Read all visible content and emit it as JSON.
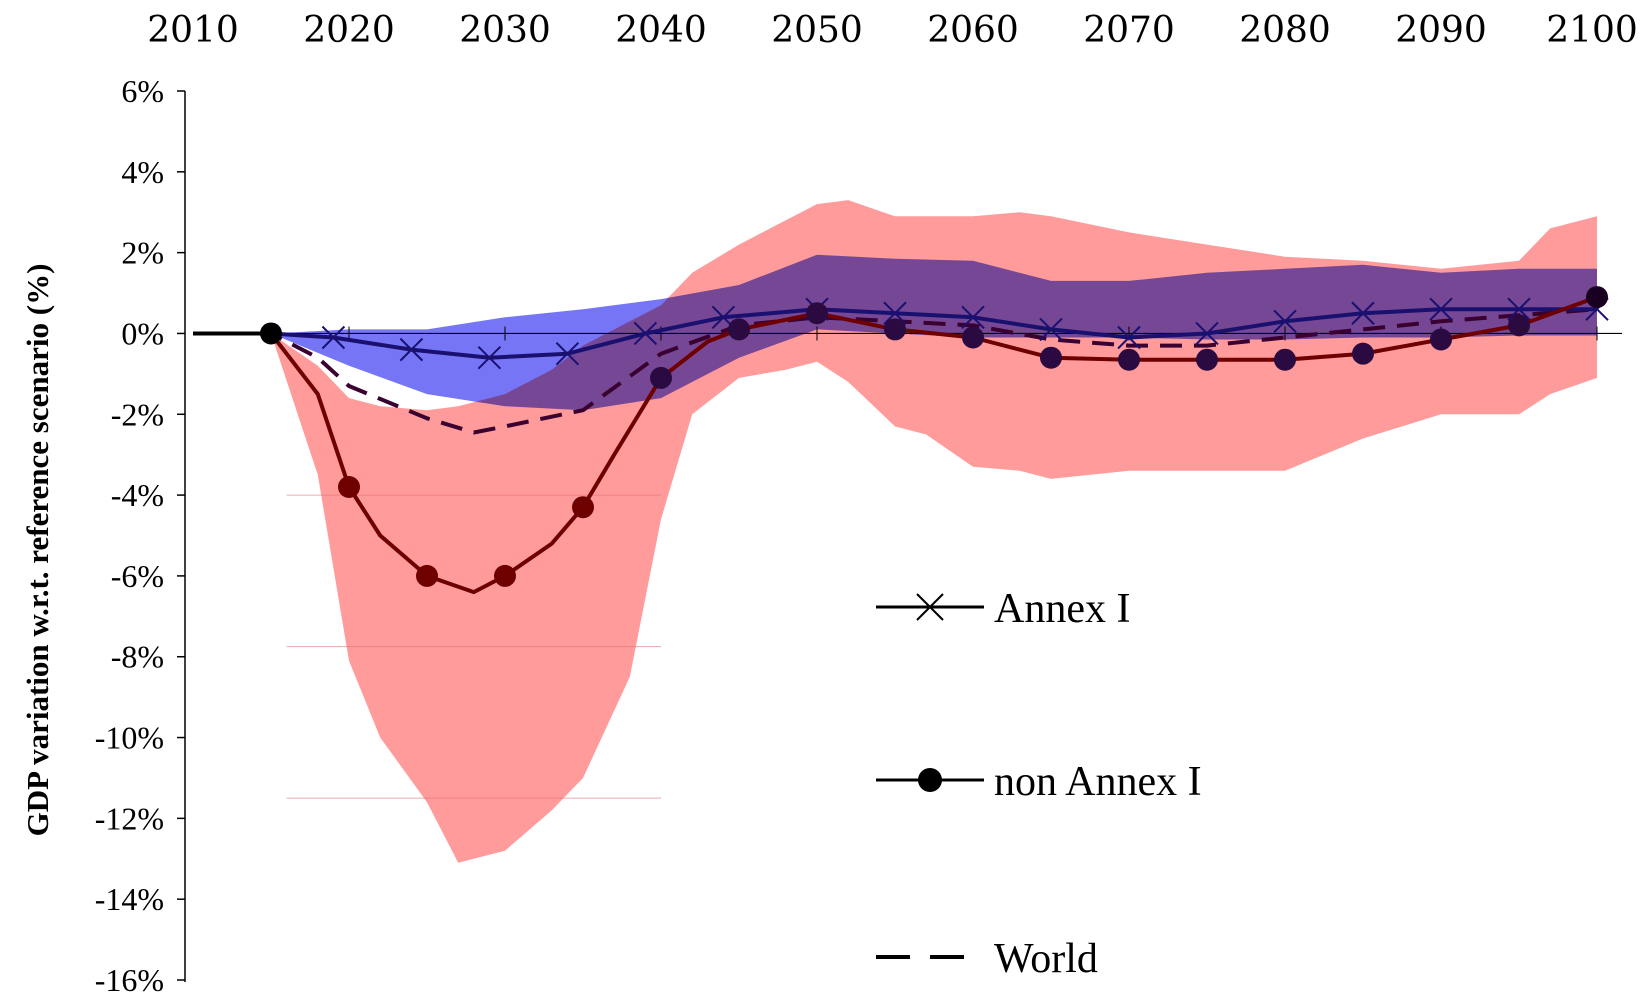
{
  "chart_data": {
    "type": "line",
    "title": "",
    "xlabel": "",
    "ylabel": "GDP variation w.r.t. reference scenario (%)",
    "x_ticks": [
      "2010",
      "2020",
      "2030",
      "2040",
      "2050",
      "2060",
      "2070",
      "2080",
      "2090",
      "2100"
    ],
    "y_ticks": [
      "6%",
      "4%",
      "2%",
      "0%",
      "-2%",
      "-4%",
      "-6%",
      "-8%",
      "-10%",
      "-12%",
      "-14%",
      "-16%"
    ],
    "xlim": [
      2010,
      2100
    ],
    "ylim": [
      -16,
      6
    ],
    "x_axis_position": "top",
    "legend_position": "center-right",
    "colors": {
      "annex_line": "#1a1070",
      "annex_band": "#6e6ef5",
      "non_annex_line": "#6e0000",
      "non_annex_band": "#ff9090",
      "overlap_band": "#7b42c8",
      "world_line": "#3a0030"
    },
    "series": [
      {
        "name": "Annex I",
        "marker": "x",
        "x": [
          2010,
          2015,
          2019,
          2024,
          2029,
          2034,
          2039,
          2044,
          2050,
          2055,
          2060,
          2065,
          2070,
          2075,
          2080,
          2085,
          2090,
          2095,
          2100
        ],
        "values": [
          0,
          0,
          -0.1,
          -0.4,
          -0.6,
          -0.5,
          0.0,
          0.4,
          0.6,
          0.5,
          0.4,
          0.1,
          -0.1,
          0.0,
          0.3,
          0.5,
          0.6,
          0.6,
          0.6
        ]
      },
      {
        "name": "non Annex I",
        "marker": "circle",
        "x": [
          2010,
          2015,
          2018,
          2020,
          2022,
          2025,
          2028,
          2030,
          2033,
          2035,
          2037,
          2040,
          2043,
          2045,
          2050,
          2055,
          2060,
          2065,
          2070,
          2075,
          2080,
          2085,
          2090,
          2095,
          2100
        ],
        "values": [
          0,
          0,
          -1.5,
          -3.8,
          -5.0,
          -6.0,
          -6.4,
          -6.0,
          -5.2,
          -4.3,
          -3.0,
          -1.1,
          -0.2,
          0.1,
          0.5,
          0.1,
          -0.1,
          -0.6,
          -0.65,
          -0.65,
          -0.65,
          -0.5,
          -0.15,
          0.2,
          0.9
        ]
      },
      {
        "name": "World",
        "marker": "none",
        "dashed": true,
        "x": [
          2010,
          2015,
          2018,
          2020,
          2025,
          2028,
          2030,
          2035,
          2040,
          2045,
          2050,
          2055,
          2060,
          2065,
          2070,
          2075,
          2080,
          2085,
          2090,
          2095,
          2100
        ],
        "values": [
          0,
          0,
          -0.6,
          -1.3,
          -2.1,
          -2.45,
          -2.3,
          -1.9,
          -0.5,
          0.2,
          0.4,
          0.3,
          0.2,
          -0.15,
          -0.3,
          -0.3,
          -0.1,
          0.1,
          0.3,
          0.45,
          0.6
        ]
      }
    ],
    "bands": [
      {
        "name": "Annex I range",
        "x": [
          2015,
          2020,
          2025,
          2030,
          2035,
          2040,
          2045,
          2050,
          2055,
          2060,
          2065,
          2070,
          2075,
          2080,
          2085,
          2090,
          2095,
          2100
        ],
        "upper": [
          0,
          0.1,
          0.1,
          0.4,
          0.6,
          0.85,
          1.2,
          1.95,
          1.85,
          1.8,
          1.3,
          1.3,
          1.5,
          1.6,
          1.7,
          1.5,
          1.6,
          1.6
        ],
        "lower": [
          0,
          -0.8,
          -1.5,
          -1.8,
          -1.9,
          -1.6,
          -0.6,
          0.1,
          0.0,
          -0.1,
          -0.1,
          -0.1,
          -0.15,
          -0.15,
          -0.1,
          -0.1,
          -0.05,
          -0.05
        ]
      },
      {
        "name": "non Annex I range",
        "x": [
          2015,
          2018,
          2020,
          2022,
          2025,
          2027,
          2030,
          2033,
          2035,
          2038,
          2040,
          2042,
          2045,
          2048,
          2050,
          2052,
          2055,
          2057,
          2060,
          2063,
          2065,
          2070,
          2075,
          2080,
          2085,
          2090,
          2095,
          2097,
          2100
        ],
        "upper": [
          0,
          -0.8,
          -1.6,
          -1.8,
          -1.9,
          -1.8,
          -1.5,
          -0.9,
          -0.3,
          0.3,
          0.7,
          1.5,
          2.2,
          2.8,
          3.2,
          3.3,
          2.9,
          2.9,
          2.9,
          3.0,
          2.9,
          2.5,
          2.2,
          1.9,
          1.8,
          1.6,
          1.8,
          2.6,
          2.9
        ],
        "lower": [
          0,
          -3.5,
          -8.1,
          -10.0,
          -11.6,
          -13.1,
          -12.8,
          -11.8,
          -11.0,
          -8.5,
          -4.6,
          -2.0,
          -1.1,
          -0.9,
          -0.7,
          -1.2,
          -2.3,
          -2.5,
          -3.3,
          -3.4,
          -3.6,
          -3.4,
          -3.4,
          -3.4,
          -2.6,
          -2.0,
          -2.0,
          -1.5,
          -1.1
        ]
      }
    ],
    "legend": [
      {
        "label": "Annex I",
        "marker": "x"
      },
      {
        "label": "non Annex I",
        "marker": "circle"
      },
      {
        "label": "World",
        "marker": "dash"
      }
    ]
  }
}
